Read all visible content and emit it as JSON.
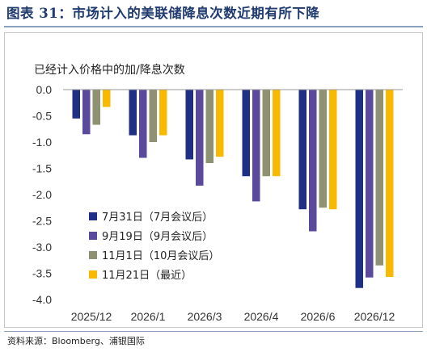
{
  "figure": {
    "title": "图表 31：市场计入的美联储降息次数近期有所下降",
    "subtitle": "已经计入价格中的加/降息次数",
    "source": "资料来源：Bloomberg、浦银国际"
  },
  "chart_data": {
    "type": "bar",
    "title": "",
    "ylabel": "已经计入价格中的加/降息次数",
    "xlabel": "",
    "categories": [
      "2025/12",
      "2026/1",
      "2026/3",
      "2026/4",
      "2026/6",
      "2026/12"
    ],
    "ylim": [
      -4.0,
      0.0
    ],
    "yticks": [
      "0.0",
      "-0.5",
      "-1.0",
      "-1.5",
      "-2.0",
      "-2.5",
      "-3.0",
      "-3.5",
      "-4.0"
    ],
    "grid": false,
    "legend_position": "bottom-left",
    "series": [
      {
        "name": "7月31日（7月会议后）",
        "color": "#1f2f86",
        "values": [
          -0.55,
          -0.87,
          -1.33,
          -1.65,
          -2.28,
          -3.78
        ]
      },
      {
        "name": "9月19日（9月会议后）",
        "color": "#5b4a9b",
        "values": [
          -0.85,
          -1.3,
          -1.83,
          -2.13,
          -2.7,
          -3.58
        ]
      },
      {
        "name": "11月1日（10月会议后）",
        "color": "#8f9272",
        "values": [
          -0.67,
          -1.0,
          -1.4,
          -1.65,
          -2.25,
          -3.35
        ]
      },
      {
        "name": "11月21日（最近）",
        "color": "#f8b900",
        "values": [
          -0.33,
          -0.87,
          -1.28,
          -1.65,
          -2.28,
          -3.57
        ]
      }
    ]
  }
}
